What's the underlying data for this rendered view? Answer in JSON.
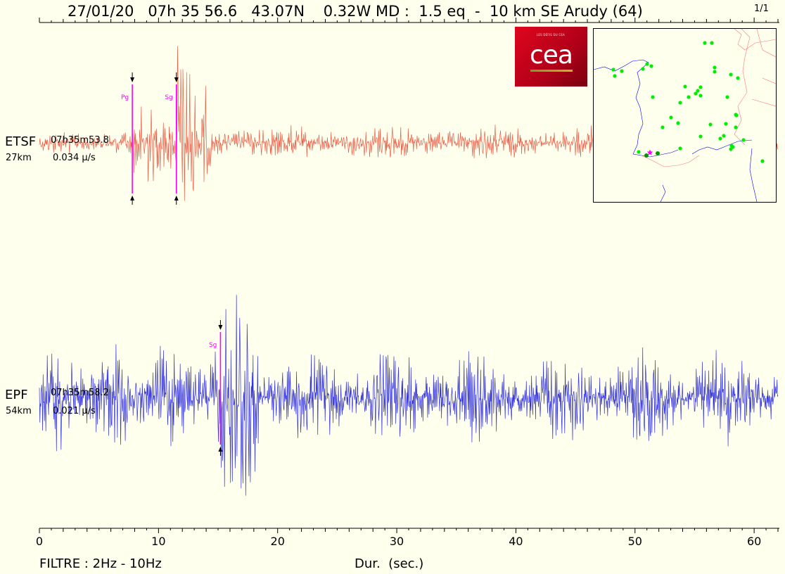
{
  "header": {
    "title": "27/01/20   07h 35 56.6   43.07N    0.32W MD :  1.5 eq  -  10 km SE Arudy (64)",
    "page": "1/1"
  },
  "logo": {
    "small_text": "LES DÉFIS DU CEA",
    "text": "cea"
  },
  "footer": {
    "filter": "FILTRE : 2Hz - 10Hz",
    "xlabel": "Dur.  (sec.)"
  },
  "stations": [
    {
      "name": "ETSF",
      "distance": "27km",
      "start_time": "07h35m53.8",
      "amplitude": "0.034 µ/s",
      "color": "#e8604a"
    },
    {
      "name": "EPF",
      "distance": "54km",
      "start_time": "07h35m58.2",
      "amplitude": "0.021 µ/s",
      "color": "#3333dd"
    }
  ],
  "chart_data": {
    "type": "line",
    "x": {
      "label": "Dur.  (sec.)",
      "range": [
        0,
        62
      ],
      "ticks": [
        0,
        10,
        20,
        30,
        40,
        50,
        60
      ]
    },
    "series": [
      {
        "name": "ETSF",
        "phases": [
          {
            "label": "Pg",
            "t": 7.8
          },
          {
            "label": "Sg",
            "t": 11.5
          }
        ]
      },
      {
        "name": "EPF",
        "phases": [
          {
            "label": "Sg",
            "t": 15.2
          }
        ]
      }
    ]
  },
  "colors": {
    "background": "#ffffee",
    "pick": "#ff00ff",
    "station_dot": "#00ee00",
    "epicenter": "#ff00ff",
    "rivers": "#0000ff",
    "borders": "#ff7777"
  }
}
